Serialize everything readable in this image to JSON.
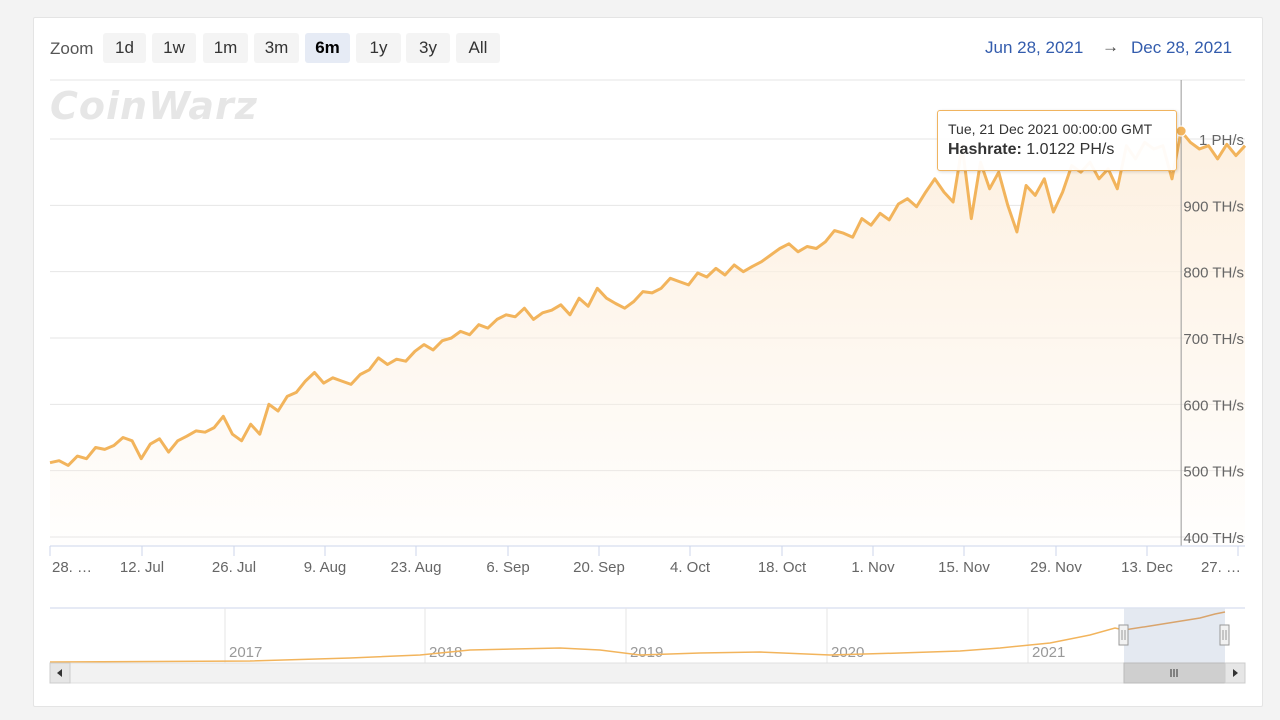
{
  "watermark": "CoinWarz",
  "zoom": {
    "label": "Zoom",
    "buttons": [
      "1d",
      "1w",
      "1m",
      "3m",
      "6m",
      "1y",
      "3y",
      "All"
    ],
    "active": "6m"
  },
  "range": {
    "from": "Jun 28, 2021",
    "arrow": "→",
    "to": "Dec 28, 2021"
  },
  "tooltip": {
    "date": "Tue, 21 Dec 2021 00:00:00 GMT",
    "label": "Hashrate:",
    "value": "1.0122 PH/s"
  },
  "colors": {
    "line": "#f2b45c",
    "fill_top": "#fdf0e0",
    "nav_mask": "#dde3ee",
    "accent_text": "#335cad"
  },
  "chart_data": {
    "type": "area",
    "series": [
      {
        "name": "Hashrate",
        "unit": "TH/s",
        "x_start": "2021-06-28",
        "x_end": "2021-12-28",
        "values": [
          512,
          515,
          508,
          522,
          518,
          535,
          532,
          538,
          550,
          545,
          518,
          540,
          548,
          528,
          545,
          552,
          560,
          558,
          565,
          582,
          555,
          545,
          570,
          555,
          600,
          590,
          612,
          618,
          635,
          648,
          632,
          640,
          635,
          630,
          645,
          652,
          670,
          660,
          668,
          665,
          680,
          690,
          682,
          696,
          700,
          710,
          705,
          720,
          715,
          728,
          735,
          732,
          745,
          728,
          738,
          742,
          750,
          735,
          760,
          748,
          775,
          760,
          752,
          745,
          755,
          770,
          768,
          775,
          790,
          785,
          780,
          798,
          792,
          805,
          795,
          810,
          800,
          808,
          815,
          825,
          835,
          842,
          830,
          838,
          835,
          845,
          862,
          858,
          852,
          880,
          870,
          888,
          878,
          902,
          910,
          898,
          920,
          940,
          920,
          905,
          990,
          880,
          965,
          925,
          950,
          900,
          860,
          930,
          915,
          940,
          890,
          920,
          960,
          950,
          965,
          940,
          955,
          925,
          990,
          970,
          995,
          985,
          990,
          940,
          1012,
          995,
          985,
          990,
          970,
          992,
          975,
          990
        ]
      }
    ],
    "x_ticks": [
      "28. …",
      "12. Jul",
      "26. Jul",
      "9. Aug",
      "23. Aug",
      "6. Sep",
      "20. Sep",
      "4. Oct",
      "18. Oct",
      "1. Nov",
      "15. Nov",
      "29. Nov",
      "13. Dec",
      "27. …"
    ],
    "y_ticks": [
      "400 TH/s",
      "500 TH/s",
      "600 TH/s",
      "700 TH/s",
      "800 TH/s",
      "900 TH/s",
      "1 PH/s"
    ],
    "ylim": [
      400,
      1000
    ],
    "grid": true,
    "navigator": {
      "years": [
        "2017",
        "2018",
        "2019",
        "2020",
        "2021"
      ]
    }
  }
}
